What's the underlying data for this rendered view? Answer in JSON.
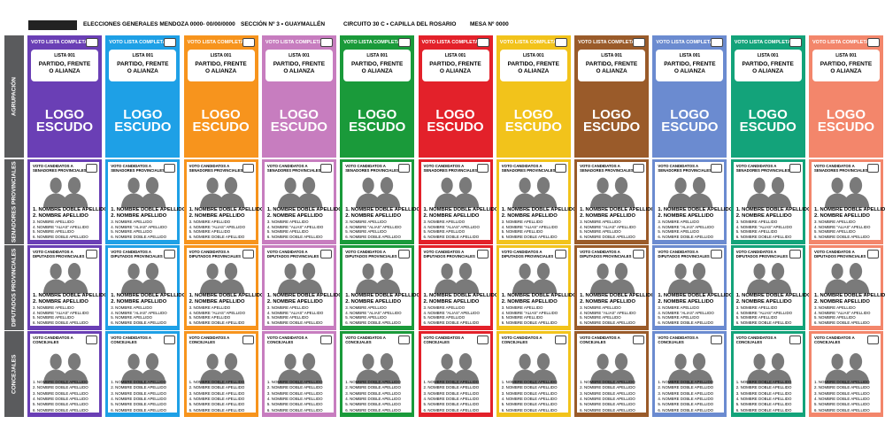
{
  "header": {
    "title": "ELECCIONES GENERALES MENDOZA 0000- 00/00/0000",
    "section": "SECCIÓN Nº 3 • GUAYMALLÉN",
    "circuit": "CIRCUITO 30 C • CAPILLA DEL ROSARIO",
    "table": "MESA Nº 0000"
  },
  "row_labels": [
    "AGRUPACIÓN",
    "SENADORES PROVINCIALES",
    "DIPUTADOS PROVINCIALES",
    "CONCEJALES"
  ],
  "list_block": {
    "vote_all": "VOTO LISTA COMPLETA",
    "list_number": "LISTA 001",
    "party": [
      "PARTIDO, FRENTE",
      "O ALIANZA"
    ],
    "logo": [
      "LOGO",
      "ESCUDO"
    ]
  },
  "lists": [
    {
      "color": "#6a3fb5"
    },
    {
      "color": "#1ea0e6"
    },
    {
      "color": "#f7941d"
    },
    {
      "color": "#c77dbf"
    },
    {
      "color": "#1a9a3a"
    },
    {
      "color": "#e3212a"
    },
    {
      "color": "#f2c31b"
    },
    {
      "color": "#9a5b2a"
    },
    {
      "color": "#6b8bd0"
    },
    {
      "color": "#13a37a"
    },
    {
      "color": "#f3866b"
    }
  ],
  "sections": [
    {
      "vote_label": [
        "VOTO CANDIDATOS A",
        "SENADORES PROVINCIALES"
      ],
      "candidates": [
        "1. NOMBRE DOBLE APELLIDO",
        "2. NOMBRE APELLIDO",
        "3. NOMBRE APELLIDO",
        "4. NOMBRE \"ALIAS\" APELLIDO",
        "5. NOMBRE APELLIDO",
        "6. NOMBRE DOBLE APELLIDO"
      ]
    },
    {
      "vote_label": [
        "VOTO CANDIDATOS A",
        "DIPUTADOS PROVINCIALES"
      ],
      "candidates": [
        "1. NOMBRE DOBLE APELLIDO",
        "2. NOMBRE APELLIDO",
        "3. NOMBRE APELLIDO",
        "4. NOMBRE \"ALIAS\" APELLIDO",
        "5. NOMBRE APELLIDO",
        "6. NOMBRE DOBLE APELLIDO"
      ]
    },
    {
      "vote_label": [
        "VOTO CANDIDATOS A",
        "CONCEJALES"
      ],
      "candidates": [
        "1. NOMBRE DOBLE APELLIDO",
        "2. NOMBRE DOBLE APELLIDO",
        "3. NOMBRE DOBLE APELLIDO",
        "4. NOMBRE DOBLE APELLIDO",
        "5. NOMBRE DOBLE APELLIDO",
        "6. NOMBRE DOBLE APELLIDO"
      ]
    }
  ]
}
